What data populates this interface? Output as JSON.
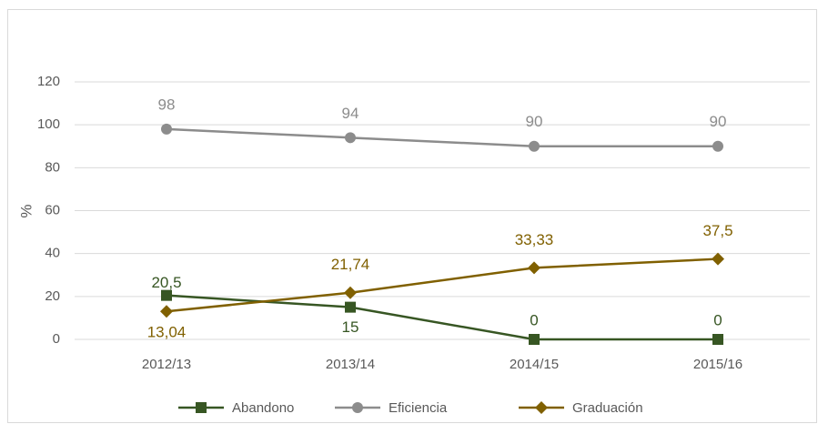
{
  "chart_data": {
    "type": "line",
    "categories": [
      "2012/13",
      "2013/14",
      "2014/15",
      "2015/16"
    ],
    "y_label": "%",
    "ylim": [
      0,
      120
    ],
    "yticks": [
      0,
      20,
      40,
      60,
      80,
      100,
      120
    ],
    "grid": true,
    "legend": "bottom",
    "series": [
      {
        "name": "Abandono",
        "color": "#375623",
        "marker": "square",
        "values": [
          20.5,
          15,
          0,
          0
        ],
        "value_labels": [
          "20,5",
          "15",
          "0",
          "0"
        ]
      },
      {
        "name": "Eficiencia",
        "color": "#8c8c8c",
        "marker": "circle",
        "values": [
          98,
          94,
          90,
          90
        ],
        "value_labels": [
          "98",
          "94",
          "90",
          "90"
        ]
      },
      {
        "name": "Graduación",
        "color": "#806000",
        "marker": "diamond",
        "values": [
          13.04,
          21.74,
          33.33,
          37.5
        ],
        "value_labels": [
          "13,04",
          "21,74",
          "33,33",
          "37,5"
        ]
      }
    ]
  }
}
